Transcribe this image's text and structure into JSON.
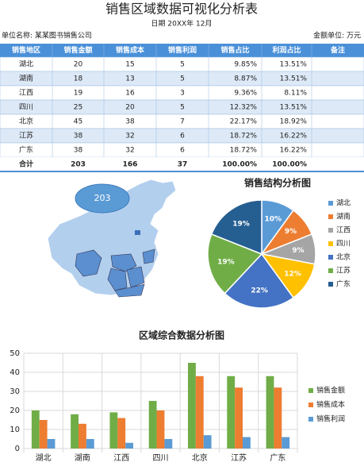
{
  "header": {
    "title": "销售区域数据可视化分析表",
    "date": "日期 20XX年 12月",
    "company": "单位名称: 某某图书销售公司",
    "unit": "金额单位: 万元"
  },
  "table": {
    "header": [
      "销售地区",
      "销售金额",
      "销售成本",
      "销售利润",
      "销售占比",
      "利润占比",
      "备注"
    ],
    "rows": [
      [
        "湖北",
        "20",
        "15",
        "5",
        "9.85%",
        "13.51%"
      ],
      [
        "湖南",
        "18",
        "13",
        "5",
        "8.87%",
        "13.51%"
      ],
      [
        "江西",
        "19",
        "16",
        "3",
        "9.36%",
        "8.11%"
      ],
      [
        "四川",
        "25",
        "20",
        "5",
        "12.32%",
        "13.51%"
      ],
      [
        "北京",
        "45",
        "38",
        "7",
        "22.17%",
        "18.92%"
      ],
      [
        "江苏",
        "38",
        "32",
        "6",
        "18.72%",
        "16.22%"
      ],
      [
        "广东",
        "38",
        "32",
        "6",
        "18.72%",
        "16.22%"
      ]
    ],
    "total": [
      "合计",
      "203",
      "166",
      "37",
      "100.00%",
      "100.00%"
    ]
  },
  "map": {
    "bubble": "203"
  },
  "chart_data": [
    {
      "type": "pie",
      "title": "销售结构分析图",
      "categories": [
        "湖北",
        "湖南",
        "江西",
        "四川",
        "北京",
        "江苏",
        "广东"
      ],
      "values": [
        10,
        9,
        9,
        12,
        22,
        19,
        19
      ],
      "value_labels": [
        "10%",
        "9%",
        "9%",
        "12%",
        "22%",
        "19%",
        "19%"
      ],
      "colors": [
        "#5b9bd5",
        "#ed7d31",
        "#a5a5a5",
        "#ffc000",
        "#4472c4",
        "#70ad47",
        "#255e91"
      ],
      "legend": "right"
    },
    {
      "type": "bar",
      "title": "区域综合数据分析图",
      "categories": [
        "湖北",
        "湖南",
        "江西",
        "四川",
        "北京",
        "江苏",
        "广东"
      ],
      "series": [
        {
          "name": "销售金额",
          "color": "#70ad47",
          "values": [
            20,
            18,
            19,
            25,
            45,
            38,
            38
          ]
        },
        {
          "name": "销售成本",
          "color": "#ed7d31",
          "values": [
            15,
            13,
            16,
            20,
            38,
            32,
            32
          ]
        },
        {
          "name": "销售利润",
          "color": "#5b9bd5",
          "values": [
            5,
            5,
            3,
            5,
            7,
            6,
            6
          ]
        }
      ],
      "ylim": [
        0,
        50
      ],
      "yticks": [
        0,
        10,
        20,
        30,
        40,
        50
      ],
      "grid": true,
      "legend": "right"
    }
  ]
}
